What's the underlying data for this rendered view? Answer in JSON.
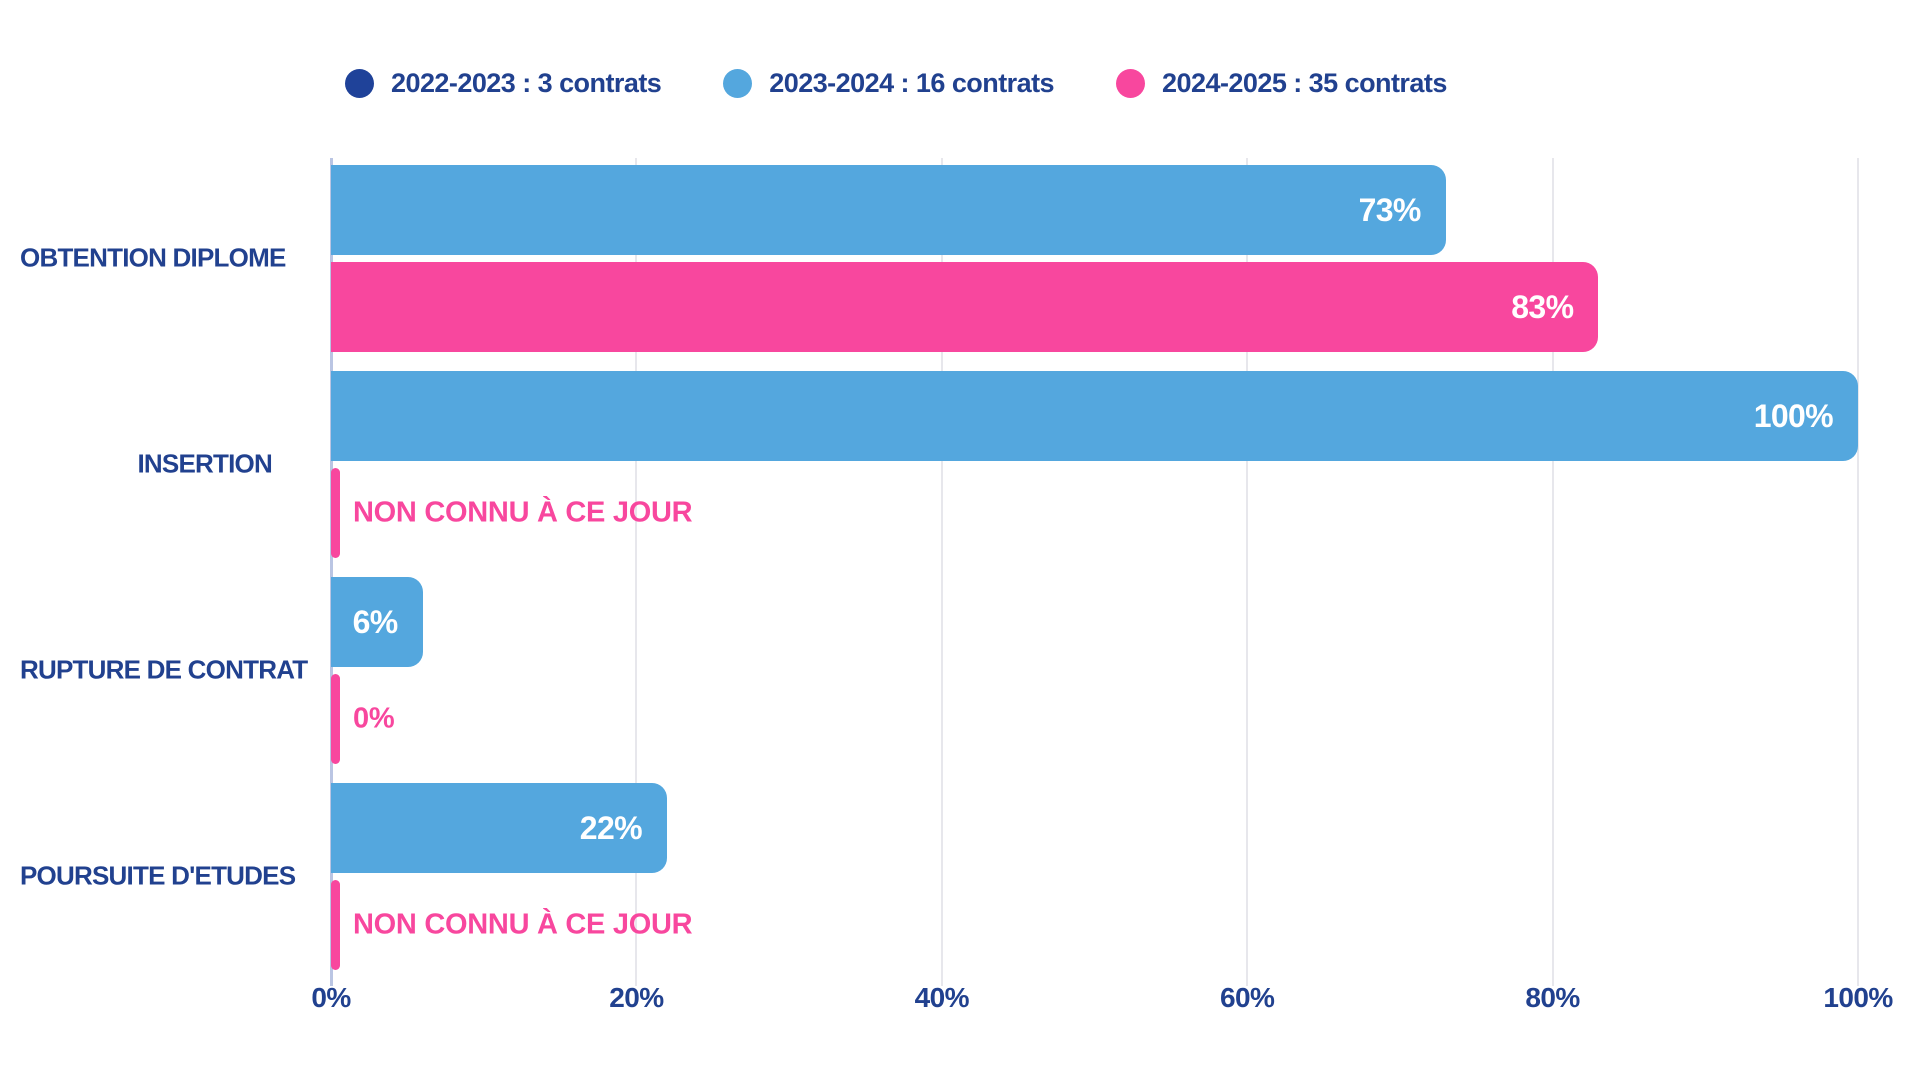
{
  "colors": {
    "background": "#FFFFFF",
    "navy_text": "#21418F",
    "series_2022": "#1F4299",
    "series_2023": "#54A7DE",
    "series_2024": "#F8479E",
    "gridline": "#E7E7EC",
    "zero_axis_line": "#BAC5E3",
    "bar_value_text": "#FFFFFF"
  },
  "chart_data": {
    "type": "bar",
    "orientation": "horizontal",
    "title": "",
    "legend_position": "top",
    "grid": true,
    "categories": [
      "OBTENTION DIPLOME",
      "INSERTION",
      "RUPTURE DE CONTRAT",
      "POURSUITE D'ETUDES"
    ],
    "series": [
      {
        "name": "2022-2023 : 3 contrats",
        "color": "#1F4299",
        "values": [
          null,
          null,
          null,
          null
        ]
      },
      {
        "name": "2023-2024 : 16 contrats",
        "color": "#54A7DE",
        "values": [
          73,
          100,
          6,
          22
        ]
      },
      {
        "name": "2024-2025 : 35 contrats",
        "color": "#F8479E",
        "values": [
          83,
          null,
          0,
          null
        ]
      }
    ],
    "x_axis": {
      "min": 0,
      "max": 100,
      "ticks": [
        {
          "label": "0%",
          "value": 0
        },
        {
          "label": "20%",
          "value": 20
        },
        {
          "label": "40%",
          "value": 40
        },
        {
          "label": "60%",
          "value": 60
        },
        {
          "label": "80%",
          "value": 80
        },
        {
          "label": "100%",
          "value": 100
        }
      ]
    },
    "rows": [
      {
        "category": "OBTENTION DIPLOME",
        "bars": [
          {
            "series": 1,
            "value": 73,
            "label": "73%",
            "inside": true
          },
          {
            "series": 2,
            "value": 83,
            "label": "83%",
            "inside": true
          }
        ]
      },
      {
        "category": "INSERTION",
        "bars": [
          {
            "series": 1,
            "value": 100,
            "label": "100%",
            "inside": true
          },
          {
            "series": 2,
            "value": null,
            "label": "NON CONNU À CE JOUR",
            "inside": false
          }
        ]
      },
      {
        "category": "RUPTURE DE CONTRAT",
        "bars": [
          {
            "series": 1,
            "value": 6,
            "label": "6%",
            "inside": true
          },
          {
            "series": 2,
            "value": 0,
            "label": "0%",
            "inside": false
          }
        ]
      },
      {
        "category": "POURSUITE D'ETUDES",
        "bars": [
          {
            "series": 1,
            "value": 22,
            "label": "22%",
            "inside": true
          },
          {
            "series": 2,
            "value": null,
            "label": "NON CONNU À CE JOUR",
            "inside": false
          }
        ]
      }
    ]
  }
}
